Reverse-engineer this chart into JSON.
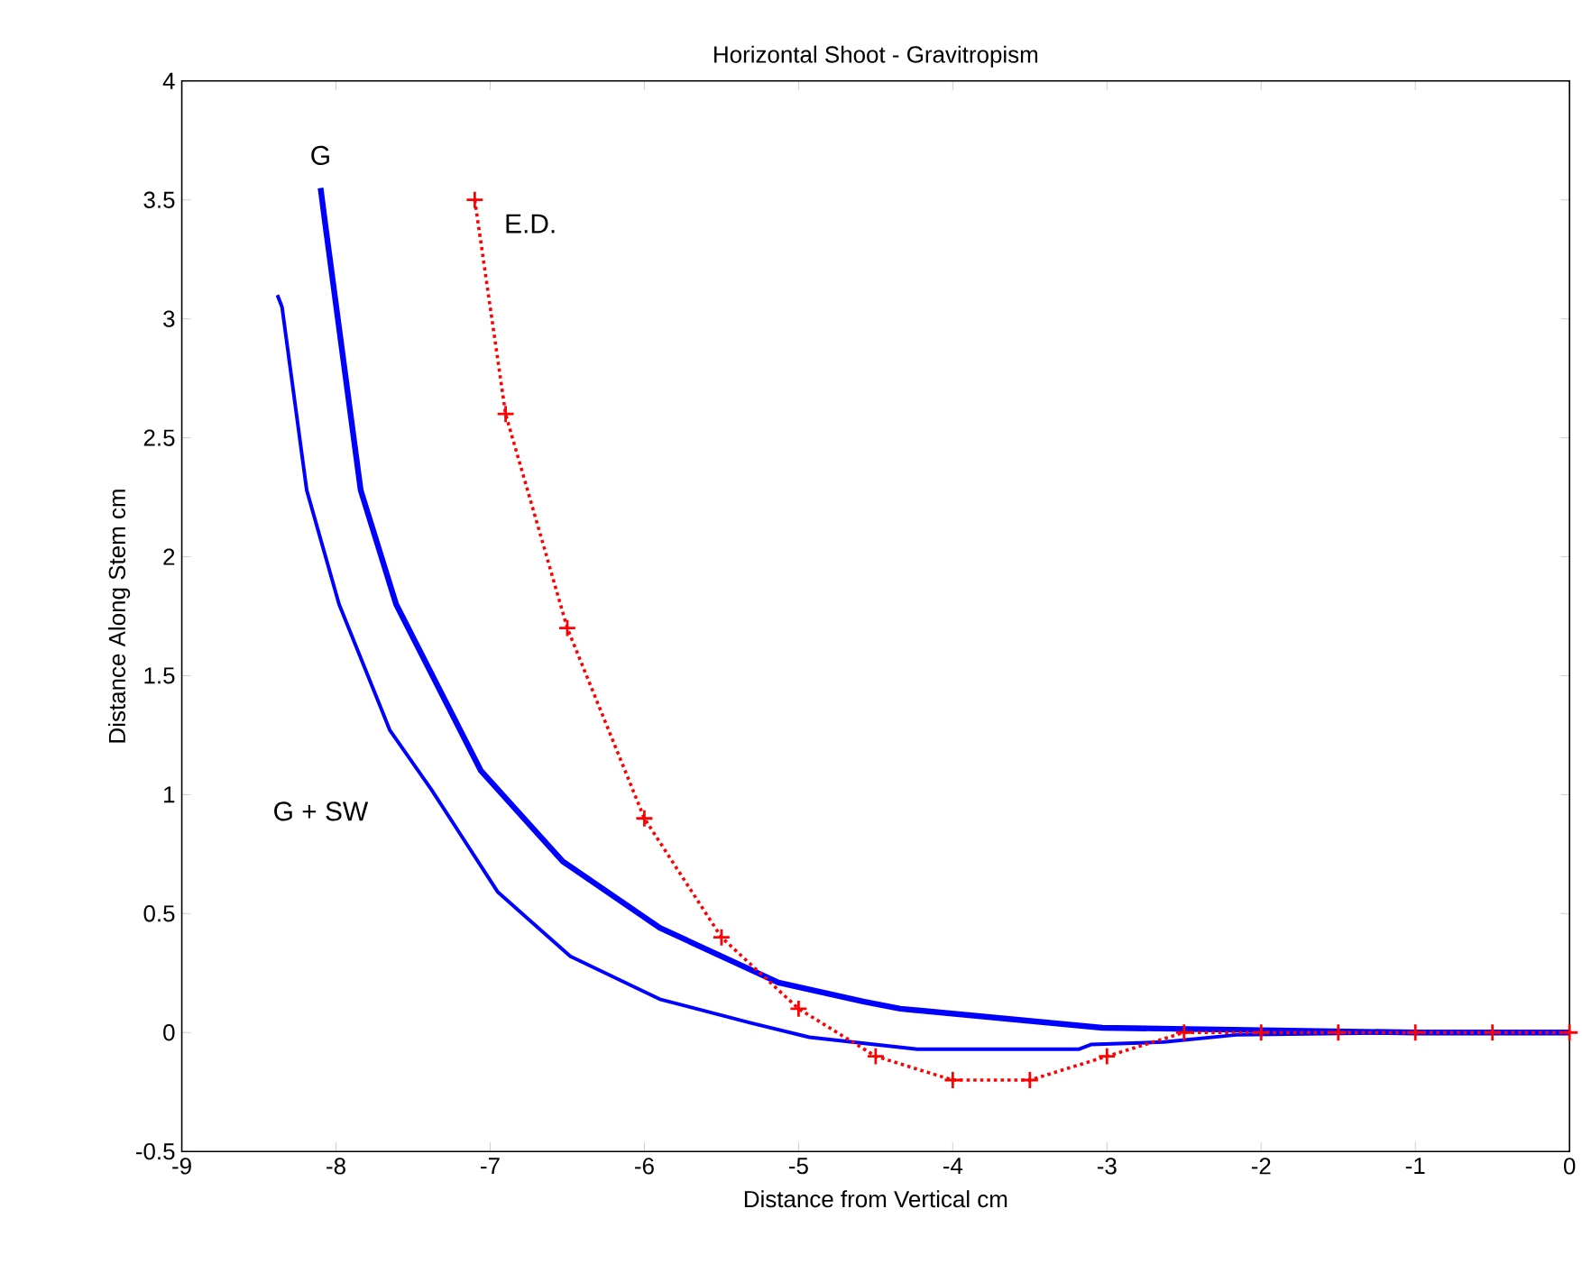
{
  "chart_data": {
    "type": "line",
    "title": "Horizontal Shoot - Gravitropism",
    "xlabel": "Distance from Vertical cm",
    "ylabel": "Distance Along Stem cm",
    "xlim": [
      -9,
      0
    ],
    "ylim": [
      -0.5,
      4
    ],
    "xticks": [
      -9,
      -8,
      -7,
      -6,
      -5,
      -4,
      -3,
      -2,
      -1,
      0
    ],
    "yticks": [
      -0.5,
      0,
      0.5,
      1,
      1.5,
      2,
      2.5,
      3,
      3.5,
      4
    ],
    "grid": false,
    "legend": false,
    "series": [
      {
        "name": "G",
        "color": "#0000ff",
        "marker": "none",
        "line_style": "solid",
        "x": [
          -8.1,
          -8.07,
          -7.84,
          -7.61,
          -7.06,
          -6.53,
          -5.9,
          -5.13,
          -4.58,
          -4.34,
          -3.03,
          -2,
          -1,
          0
        ],
        "values": [
          3.55,
          3.4,
          2.28,
          1.8,
          1.1,
          0.72,
          0.44,
          0.21,
          0.13,
          0.1,
          0.02,
          0.01,
          0,
          0
        ]
      },
      {
        "name": "G + SW",
        "color": "#0000ff",
        "marker": "none",
        "line_style": "solid",
        "x": [
          -8.38,
          -8.35,
          -8.19,
          -7.98,
          -7.65,
          -7.38,
          -6.95,
          -6.48,
          -5.9,
          -5.31,
          -4.93,
          -4.23,
          -3.18,
          -3.1,
          -2.63,
          -2.16,
          -1,
          0
        ],
        "values": [
          3.1,
          3.05,
          2.28,
          1.8,
          1.27,
          1.02,
          0.59,
          0.32,
          0.14,
          0.04,
          -0.02,
          -0.07,
          -0.07,
          -0.05,
          -0.04,
          -0.01,
          0,
          0
        ]
      },
      {
        "name": "E.D.",
        "color": "#ff0000",
        "marker": "cross",
        "line_style": "dotted",
        "x": [
          -7.1,
          -6.9,
          -6.5,
          -6,
          -5.5,
          -5,
          -4.5,
          -4,
          -3.5,
          -3,
          -2.5,
          -2,
          -1.5,
          -1,
          -0.5,
          0
        ],
        "values": [
          3.5,
          2.6,
          1.7,
          0.9,
          0.4,
          0.1,
          -0.1,
          -0.2,
          -0.2,
          -0.1,
          0,
          0,
          0,
          0,
          0,
          0
        ]
      }
    ]
  }
}
